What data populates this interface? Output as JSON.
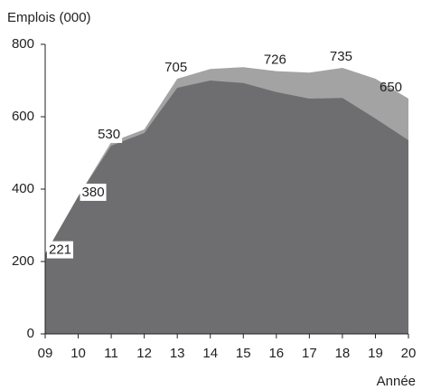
{
  "chart_data": {
    "type": "area",
    "y_label": "Emplois (000)",
    "x_label": "Année",
    "categories": [
      "09",
      "10",
      "11",
      "12",
      "13",
      "14",
      "15",
      "16",
      "17",
      "18",
      "19",
      "20"
    ],
    "series": [
      {
        "color": "#a3a3a3",
        "values": [
          221,
          380,
          530,
          565,
          705,
          732,
          737,
          726,
          722,
          735,
          705,
          650
        ],
        "value_labels": [
          "221",
          "380",
          "530",
          null,
          "705",
          null,
          null,
          "726",
          null,
          "735",
          null,
          "650"
        ]
      },
      {
        "color": "#6e6e70",
        "values": [
          221,
          380,
          520,
          555,
          680,
          700,
          693,
          668,
          650,
          652,
          595,
          535
        ]
      }
    ],
    "ylim": [
      0,
      800
    ],
    "yticks": [
      0,
      200,
      400,
      600,
      800
    ]
  }
}
